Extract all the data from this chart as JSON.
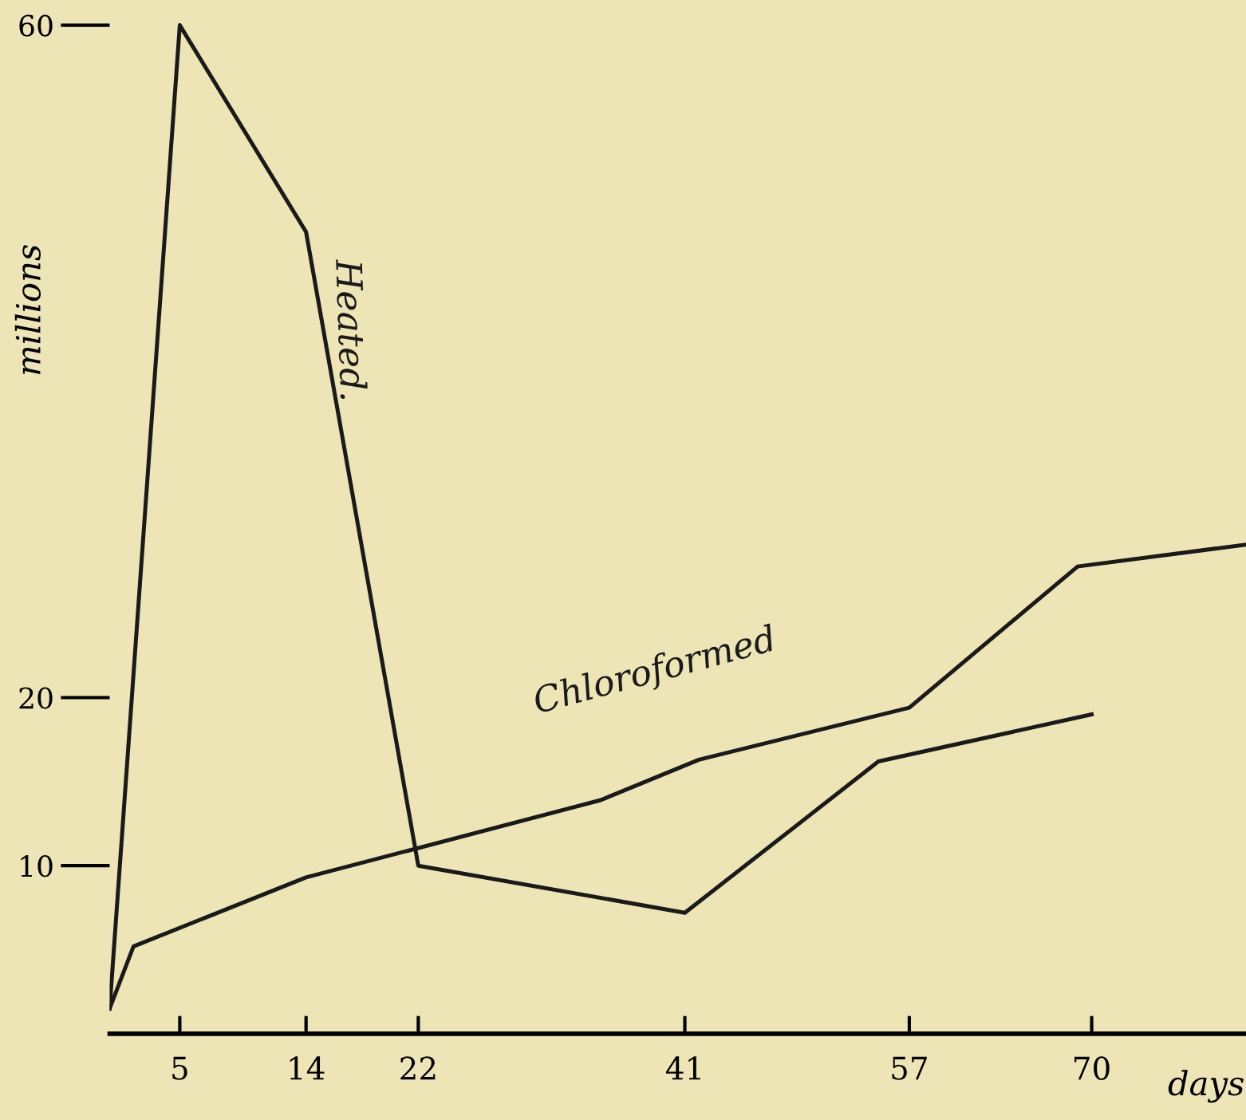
{
  "chart_data": {
    "type": "line",
    "xlabel": "days",
    "ylabel": "millions",
    "xlim": [
      0,
      81
    ],
    "ylim": [
      0,
      61.5
    ],
    "xticks": [
      5,
      14,
      22,
      41,
      57,
      70
    ],
    "yticks": [
      10,
      20,
      60
    ],
    "series": [
      {
        "name": "Heated.",
        "color": "#1a1a1a",
        "x": [
          0,
          5,
          14,
          22,
          41,
          54.8,
          70
        ],
        "values": [
          1.5,
          60,
          47.7,
          10,
          7.2,
          16.2,
          19
        ]
      },
      {
        "name": "Chloroformed",
        "color": "#1a1a1a",
        "x": [
          0,
          1.7,
          14,
          35,
          42,
          57,
          69,
          81
        ],
        "values": [
          1.5,
          5.2,
          9.3,
          13.9,
          16.3,
          19.4,
          27.8,
          29.1
        ]
      }
    ],
    "grid": false,
    "legend": false,
    "marker": "none",
    "line_style": "solid"
  }
}
